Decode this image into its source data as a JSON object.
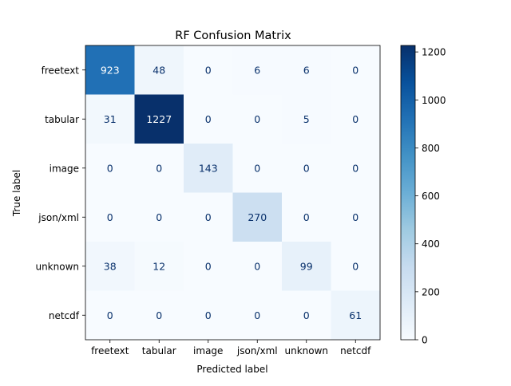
{
  "chart_data": {
    "type": "heatmap",
    "title": "RF Confusion Matrix",
    "xlabel": "Predicted label",
    "ylabel": "True label",
    "x_categories": [
      "freetext",
      "tabular",
      "image",
      "json/xml",
      "unknown",
      "netcdf"
    ],
    "y_categories": [
      "freetext",
      "tabular",
      "image",
      "json/xml",
      "unknown",
      "netcdf"
    ],
    "values": [
      [
        923,
        48,
        0,
        6,
        6,
        0
      ],
      [
        31,
        1227,
        0,
        0,
        5,
        0
      ],
      [
        0,
        0,
        143,
        0,
        0,
        0
      ],
      [
        0,
        0,
        0,
        270,
        0,
        0
      ],
      [
        38,
        12,
        0,
        0,
        99,
        0
      ],
      [
        0,
        0,
        0,
        0,
        0,
        61
      ]
    ],
    "colormap": "Blues",
    "colormap_stops": [
      "#f7fbff",
      "#deebf7",
      "#c6dbef",
      "#9ecae1",
      "#6baed6",
      "#4292c6",
      "#2171b5",
      "#08519c",
      "#08306b"
    ],
    "value_range": [
      0,
      1227
    ],
    "colorbar_ticks": [
      0,
      200,
      400,
      600,
      800,
      1000,
      1200
    ],
    "grid": false
  }
}
